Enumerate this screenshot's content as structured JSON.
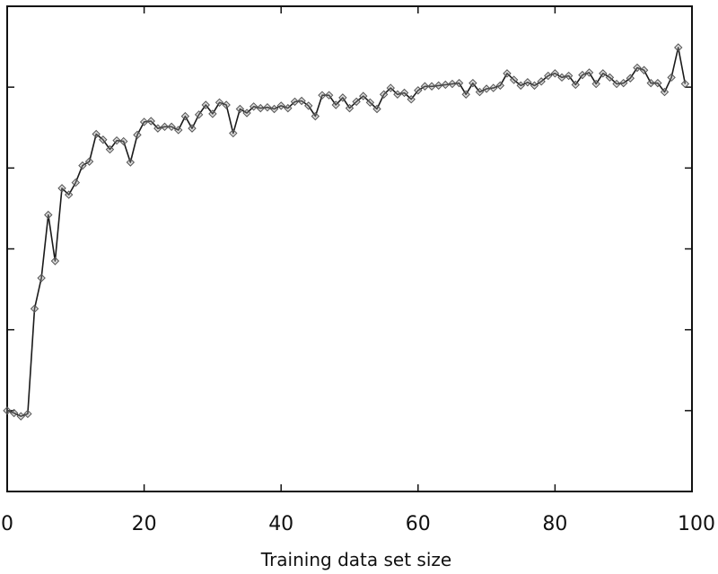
{
  "chart_data": {
    "type": "line",
    "title": "",
    "xlabel": "Training data set size",
    "ylabel": "",
    "xlim": [
      0,
      100
    ],
    "ylim": [
      0,
      6
    ],
    "xticks": [
      0,
      20,
      40,
      60,
      80,
      100
    ],
    "xtick_labels": [
      "0",
      "20",
      "40",
      "60",
      "80",
      "100"
    ],
    "yticks": [
      1,
      2,
      3,
      4,
      5
    ],
    "grid": false,
    "line_color": "#1a1a1a",
    "marker": "diamond",
    "marker_color": "#9a9a9a",
    "series": [
      {
        "x": [
          0,
          1,
          2,
          3,
          4,
          5,
          6,
          7,
          8,
          9,
          10,
          11,
          12,
          13,
          14,
          15,
          16,
          17,
          18,
          19,
          20,
          21,
          22,
          23,
          24,
          25,
          26,
          27,
          28,
          29,
          30,
          31,
          32,
          33,
          34,
          35,
          36,
          37,
          38,
          39,
          40,
          41,
          42,
          43,
          44,
          45,
          46,
          47,
          48,
          49,
          50,
          51,
          52,
          53,
          54,
          55,
          56,
          57,
          58,
          59,
          60,
          61,
          62,
          63,
          64,
          65,
          66,
          67,
          68,
          69,
          70,
          71,
          72,
          73,
          74,
          75,
          76,
          77,
          78,
          79,
          80,
          81,
          82,
          83,
          84,
          85,
          86,
          87,
          88,
          89,
          90,
          91,
          92,
          93,
          94,
          95,
          96,
          97,
          98,
          99
        ],
        "y": [
          1.0,
          0.97,
          0.93,
          0.96,
          2.26,
          2.64,
          3.42,
          2.85,
          3.75,
          3.67,
          3.82,
          4.03,
          4.08,
          4.42,
          4.35,
          4.23,
          4.34,
          4.33,
          4.07,
          4.41,
          4.57,
          4.58,
          4.49,
          4.51,
          4.51,
          4.47,
          4.64,
          4.49,
          4.66,
          4.78,
          4.67,
          4.81,
          4.78,
          4.43,
          4.73,
          4.68,
          4.76,
          4.74,
          4.75,
          4.73,
          4.77,
          4.74,
          4.82,
          4.83,
          4.77,
          4.64,
          4.9,
          4.9,
          4.78,
          4.87,
          4.74,
          4.82,
          4.89,
          4.81,
          4.73,
          4.91,
          4.99,
          4.91,
          4.93,
          4.85,
          4.96,
          5.01,
          5.01,
          5.02,
          5.03,
          5.04,
          5.05,
          4.91,
          5.05,
          4.94,
          4.98,
          4.99,
          5.02,
          5.17,
          5.09,
          5.02,
          5.06,
          5.02,
          5.07,
          5.14,
          5.17,
          5.12,
          5.14,
          5.03,
          5.15,
          5.18,
          5.04,
          5.17,
          5.12,
          5.04,
          5.05,
          5.11,
          5.24,
          5.21,
          5.05,
          5.05,
          4.94,
          5.12,
          5.49,
          5.04
        ]
      }
    ]
  }
}
